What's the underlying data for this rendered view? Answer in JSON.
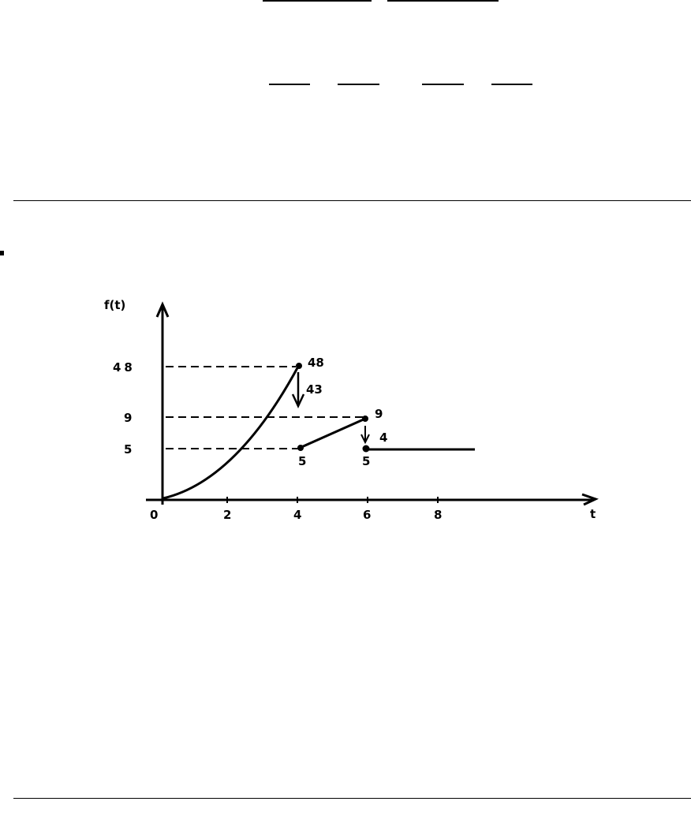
{
  "figure": {
    "y_axis_label": "f(t)",
    "x_axis_label": "t",
    "x_ticks": [
      "0",
      "2",
      "4",
      "6",
      "8"
    ],
    "y_ticks": [
      "48",
      "9",
      "5"
    ],
    "point_labels": {
      "peak": "48",
      "drop_1": "43",
      "start_segment": "5",
      "end_segment": "9",
      "drop_2": "4",
      "start_constant": "5"
    },
    "pieces": [
      {
        "kind": "curve",
        "from": [
          0,
          0
        ],
        "to": [
          4,
          48
        ]
      },
      {
        "kind": "line",
        "from": [
          4,
          5
        ],
        "to": [
          6,
          9
        ]
      },
      {
        "kind": "constant",
        "from": [
          6,
          5
        ],
        "value": 5
      }
    ],
    "line_color": "#000000"
  }
}
